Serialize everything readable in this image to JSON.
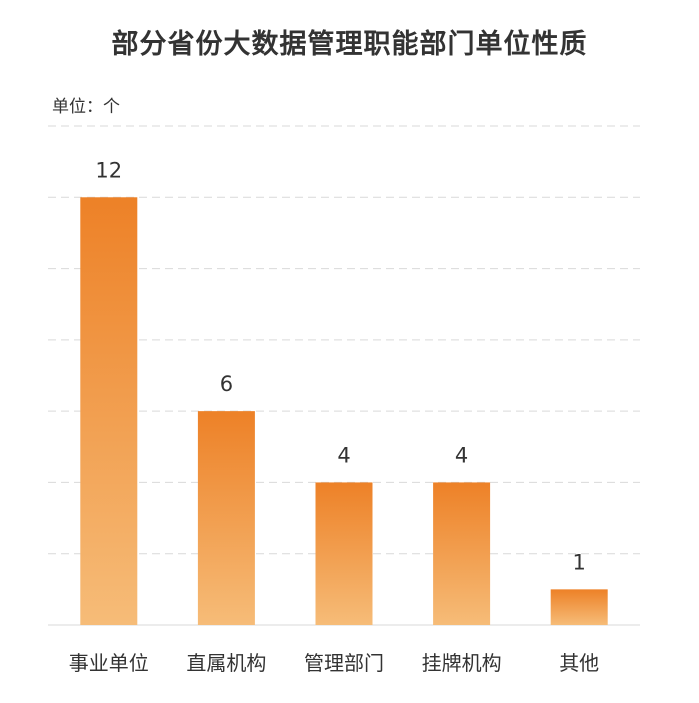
{
  "title": "部分省份大数据管理职能部门单位性质",
  "unit_label": "单位：个",
  "colors": {
    "bar_top": "#ED8127",
    "bar_bottom": "#F6BC78",
    "grid": "#D9D9D9",
    "text": "#333333"
  },
  "chart_data": {
    "type": "bar",
    "title": "部分省份大数据管理职能部门单位性质",
    "ylabel": "单位：个",
    "xlabel": "",
    "categories": [
      "事业单位",
      "直属机构",
      "管理部门",
      "挂牌机构",
      "其他"
    ],
    "values": [
      12,
      6,
      4,
      4,
      1
    ],
    "data_labels": [
      "12",
      "6",
      "4",
      "4",
      "1"
    ],
    "ylim": [
      0,
      14
    ],
    "grid": true,
    "grid_style": "dashed"
  }
}
